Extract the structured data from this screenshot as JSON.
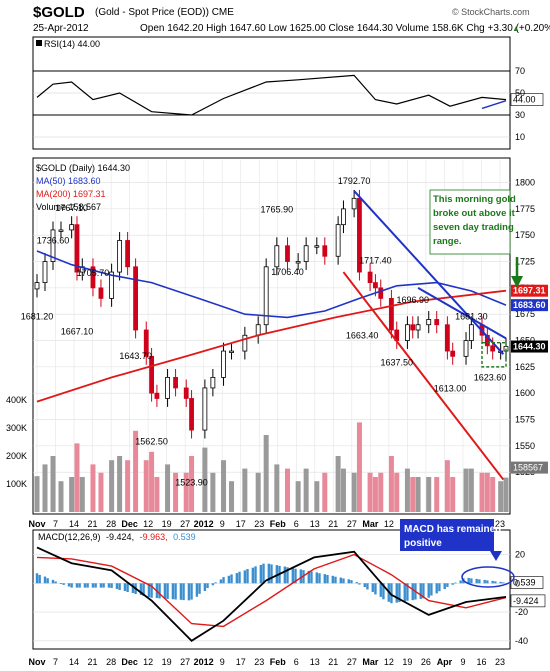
{
  "header": {
    "symbol": "$GOLD",
    "description": "(Gold - Spot Price (EOD)) CME",
    "date": "25-Apr-2012",
    "quote": "Open 1642.20  High 1647.60  Low 1625.00  Close 1644.30  Volume 158.6K  Chg +3.30 (+0.20%)",
    "watermark": "© StockCharts.com",
    "trend_arrow": "▲"
  },
  "rsi_panel": {
    "legend": "RSI(14) 44.00",
    "y_ticks": [
      "70",
      "50",
      "30",
      "10"
    ],
    "current_label": "44.00"
  },
  "price_panel": {
    "legend_title": "$GOLD (Daily) 1644.30",
    "legend_ma50": "MA(50) 1683.60",
    "legend_ma200": "MA(200) 1697.31",
    "legend_volume": "Volume 158,567",
    "y_ticks": [
      "1800",
      "1775",
      "1750",
      "1725",
      "1700",
      "1675",
      "1650",
      "1625",
      "1600",
      "1575",
      "1550",
      "1525"
    ],
    "vol_ticks": [
      "400K",
      "300K",
      "200K",
      "100K"
    ],
    "right_labels": {
      "ma200": "1697.31",
      "ma50": "1683.60",
      "close": "1644.30",
      "volume": "158567"
    },
    "callout": [
      "This morning gold",
      "broke out above it",
      "seven day trading",
      "range."
    ]
  },
  "macd_panel": {
    "legend_prefix": "MACD(12,26,9)",
    "legend_macd": "-9.424,",
    "legend_signal": "-9.963,",
    "legend_hist": "0.539",
    "y_ticks": [
      "20",
      "0",
      "-20",
      "-40"
    ],
    "right_labels": {
      "hist": "0.539",
      "macd": "-9.424"
    },
    "callout": [
      "MACD has remained",
      "positive"
    ]
  },
  "x_axis_labels": [
    "Nov",
    "7",
    "14",
    "21",
    "28",
    "Dec",
    "12",
    "19",
    "27",
    "2012",
    "9",
    "17",
    "23",
    "Feb",
    "6",
    "13",
    "21",
    "27",
    "Mar",
    "12",
    "19",
    "26",
    "Apr",
    "9",
    "16",
    "23"
  ],
  "colors": {
    "up": "#000000",
    "down": "#d0021b",
    "ma50": "#1f33c8",
    "ma200": "#e01818",
    "rsi": "#000000",
    "macd": "#000000",
    "signal": "#e01818",
    "hist": "#3a8fd1",
    "vol_up": "#9a9a9a",
    "vol_down": "#e8899a",
    "callout_text": "#1a7a1a"
  },
  "chart_data": {
    "type": "candlestick",
    "x_start": "2011-11-01",
    "x_end": "2012-04-25",
    "price_range": [
      1510,
      1810
    ],
    "rsi_range": [
      0,
      100
    ],
    "volume_range": [
      0,
      500000
    ],
    "macd_range": [
      -45,
      35
    ],
    "annotated_prices": [
      {
        "date": "2011-11-01",
        "label": "1681.20",
        "value": 1681.2
      },
      {
        "date": "2011-11-07",
        "label": "1736.60",
        "value": 1736.6
      },
      {
        "date": "2011-11-14",
        "label": "1767.10",
        "value": 1767.1
      },
      {
        "date": "2011-11-16",
        "label": "1667.10",
        "value": 1667.1
      },
      {
        "date": "2011-11-22",
        "label": "1705.70",
        "value": 1705.7
      },
      {
        "date": "2011-12-08",
        "label": "1643.70",
        "value": 1643.7
      },
      {
        "date": "2011-12-14",
        "label": "1562.50",
        "value": 1562.5
      },
      {
        "date": "2011-12-29",
        "label": "1523.90",
        "value": 1523.9
      },
      {
        "date": "2012-01-30",
        "label": "1765.90",
        "value": 1765.9
      },
      {
        "date": "2012-02-03",
        "label": "1706.40",
        "value": 1706.4
      },
      {
        "date": "2012-02-28",
        "label": "1792.70",
        "value": 1792.7
      },
      {
        "date": "2012-03-02",
        "label": "1663.40",
        "value": 1663.4
      },
      {
        "date": "2012-03-07",
        "label": "1717.40",
        "value": 1717.4
      },
      {
        "date": "2012-03-15",
        "label": "1637.50",
        "value": 1637.5
      },
      {
        "date": "2012-03-21",
        "label": "1696.90",
        "value": 1696.9
      },
      {
        "date": "2012-04-04",
        "label": "1613.00",
        "value": 1613.0
      },
      {
        "date": "2012-04-12",
        "label": "1681.30",
        "value": 1681.3
      },
      {
        "date": "2012-04-19",
        "label": "1623.60",
        "value": 1623.6
      }
    ],
    "close_series": {
      "dates": [
        "2011-11-01",
        "2011-11-04",
        "2011-11-07",
        "2011-11-10",
        "2011-11-14",
        "2011-11-16",
        "2011-11-18",
        "2011-11-22",
        "2011-11-25",
        "2011-11-29",
        "2011-12-02",
        "2011-12-05",
        "2011-12-08",
        "2011-12-12",
        "2011-12-14",
        "2011-12-16",
        "2011-12-20",
        "2011-12-23",
        "2011-12-27",
        "2011-12-29",
        "2012-01-03",
        "2012-01-06",
        "2012-01-10",
        "2012-01-13",
        "2012-01-18",
        "2012-01-23",
        "2012-01-26",
        "2012-01-30",
        "2012-02-03",
        "2012-02-07",
        "2012-02-10",
        "2012-02-14",
        "2012-02-17",
        "2012-02-22",
        "2012-02-24",
        "2012-02-28",
        "2012-03-01",
        "2012-03-05",
        "2012-03-07",
        "2012-03-09",
        "2012-03-13",
        "2012-03-15",
        "2012-03-19",
        "2012-03-21",
        "2012-03-23",
        "2012-03-27",
        "2012-03-30",
        "2012-04-03",
        "2012-04-05",
        "2012-04-10",
        "2012-04-12",
        "2012-04-16",
        "2012-04-18",
        "2012-04-20",
        "2012-04-23",
        "2012-04-25"
      ],
      "values": [
        1705,
        1725,
        1755,
        1755,
        1760,
        1715,
        1720,
        1700,
        1690,
        1715,
        1745,
        1720,
        1660,
        1635,
        1600,
        1595,
        1615,
        1605,
        1595,
        1565,
        1605,
        1615,
        1640,
        1640,
        1655,
        1665,
        1720,
        1740,
        1725,
        1725,
        1740,
        1740,
        1730,
        1760,
        1775,
        1785,
        1715,
        1705,
        1700,
        1690,
        1660,
        1650,
        1665,
        1660,
        1665,
        1670,
        1665,
        1640,
        1635,
        1650,
        1665,
        1655,
        1645,
        1640,
        1640,
        1644.3
      ]
    },
    "series": [
      {
        "name": "MA(50)",
        "dates": [
          "2011-11-01",
          "2011-11-14",
          "2011-11-29",
          "2011-12-14",
          "2012-01-03",
          "2012-01-18",
          "2012-02-03",
          "2012-02-17",
          "2012-03-01",
          "2012-03-15",
          "2012-03-30",
          "2012-04-12",
          "2012-04-25"
        ],
        "values": [
          1735,
          1722,
          1712,
          1705,
          1688,
          1675,
          1672,
          1678,
          1690,
          1702,
          1705,
          1697,
          1683.6
        ]
      },
      {
        "name": "MA(200)",
        "dates": [
          "2011-11-01",
          "2011-11-29",
          "2011-12-27",
          "2012-01-23",
          "2012-02-21",
          "2012-03-21",
          "2012-04-25"
        ],
        "values": [
          1592,
          1615,
          1635,
          1655,
          1672,
          1687,
          1697.31
        ]
      },
      {
        "name": "RSI(14)",
        "dates": [
          "2011-11-01",
          "2011-11-07",
          "2011-11-14",
          "2011-11-22",
          "2011-12-02",
          "2011-12-14",
          "2011-12-29",
          "2012-01-10",
          "2012-01-26",
          "2012-02-07",
          "2012-02-28",
          "2012-03-07",
          "2012-03-15",
          "2012-03-27",
          "2012-04-04",
          "2012-04-16",
          "2012-04-25"
        ],
        "values": [
          46,
          58,
          60,
          44,
          50,
          33,
          30,
          45,
          60,
          62,
          66,
          44,
          40,
          48,
          38,
          46,
          44
        ]
      },
      {
        "name": "MACD",
        "dates": [
          "2011-11-01",
          "2011-11-14",
          "2011-11-29",
          "2011-12-14",
          "2011-12-29",
          "2012-01-10",
          "2012-01-26",
          "2012-02-13",
          "2012-02-28",
          "2012-03-13",
          "2012-03-27",
          "2012-04-10",
          "2012-04-25"
        ],
        "values": [
          25,
          14,
          9,
          -12,
          -40,
          -26,
          2,
          18,
          22,
          -8,
          -22,
          -13,
          -9.424
        ]
      },
      {
        "name": "Signal",
        "dates": [
          "2011-11-01",
          "2011-11-14",
          "2011-11-29",
          "2011-12-14",
          "2011-12-29",
          "2012-01-10",
          "2012-01-26",
          "2012-02-13",
          "2012-02-28",
          "2012-03-13",
          "2012-03-27",
          "2012-04-10",
          "2012-04-25"
        ],
        "values": [
          18,
          17,
          12,
          -2,
          -28,
          -30,
          -12,
          10,
          20,
          6,
          -12,
          -17,
          -9.963
        ]
      },
      {
        "name": "Histogram",
        "dates": [
          "2011-11-01",
          "2011-11-14",
          "2011-11-29",
          "2011-12-14",
          "2011-12-29",
          "2012-01-10",
          "2012-01-26",
          "2012-02-13",
          "2012-02-28",
          "2012-03-13",
          "2012-03-27",
          "2012-04-10",
          "2012-04-25"
        ],
        "values": [
          7,
          -3,
          -3,
          -10,
          -12,
          4,
          14,
          8,
          2,
          -14,
          -10,
          4,
          0.539
        ]
      }
    ],
    "trendlines": [
      {
        "name": "blue-down-trendline",
        "from": {
          "date": "2012-02-28",
          "value": 1792
        },
        "to": {
          "date": "2012-04-24",
          "value": 1637
        }
      },
      {
        "name": "blue-long-trendline",
        "from": {
          "date": "2012-03-23",
          "value": 1700
        },
        "to": {
          "date": "2012-04-25",
          "value": 1652
        }
      },
      {
        "name": "red-channel-line",
        "from": {
          "date": "2012-02-24",
          "value": 1715
        },
        "to": {
          "date": "2012-04-24",
          "value": 1518
        }
      }
    ],
    "range_box": {
      "from_date": "2012-04-16",
      "to_date": "2012-04-25",
      "low": 1625,
      "high": 1648
    }
  }
}
